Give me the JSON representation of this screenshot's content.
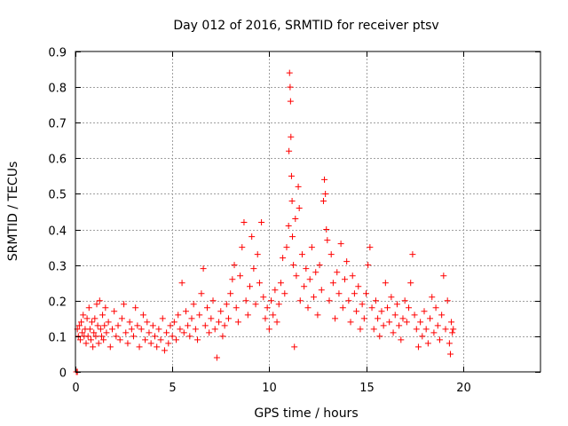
{
  "chart_data": {
    "type": "scatter",
    "title": "Day 012 of 2016, SRMTID for receiver ptsv",
    "xlabel": "GPS time / hours",
    "ylabel": "SRMTID / TECUs",
    "xlim": [
      0,
      24
    ],
    "ylim": [
      0,
      0.9
    ],
    "xticks": [
      0,
      5,
      10,
      15,
      20
    ],
    "yticks": [
      0,
      0.1,
      0.2,
      0.3,
      0.4,
      0.5,
      0.6,
      0.7,
      0.8,
      0.9
    ],
    "xtick_labels": [
      "0",
      "5",
      "10",
      "15",
      "20"
    ],
    "ytick_labels": [
      "0",
      "0.1",
      "0.2",
      "0.3",
      "0.4",
      "0.5",
      "0.6",
      "0.7",
      "0.8",
      "0.9"
    ],
    "grid": true,
    "marker": "+",
    "color": "#ff0000",
    "series": [
      {
        "name": "SRMTID",
        "points": [
          [
            0.05,
            0.0
          ],
          [
            0.1,
            0.0
          ],
          [
            0.1,
            0.12
          ],
          [
            0.15,
            0.1
          ],
          [
            0.2,
            0.13
          ],
          [
            0.25,
            0.09
          ],
          [
            0.3,
            0.14
          ],
          [
            0.35,
            0.11
          ],
          [
            0.4,
            0.16
          ],
          [
            0.45,
            0.1
          ],
          [
            0.5,
            0.12
          ],
          [
            0.55,
            0.08
          ],
          [
            0.6,
            0.15
          ],
          [
            0.65,
            0.1
          ],
          [
            0.7,
            0.18
          ],
          [
            0.75,
            0.12
          ],
          [
            0.8,
            0.09
          ],
          [
            0.85,
            0.14
          ],
          [
            0.9,
            0.07
          ],
          [
            0.95,
            0.11
          ],
          [
            1.0,
            0.15
          ],
          [
            1.05,
            0.1
          ],
          [
            1.1,
            0.19
          ],
          [
            1.15,
            0.13
          ],
          [
            1.2,
            0.08
          ],
          [
            1.25,
            0.2
          ],
          [
            1.3,
            0.12
          ],
          [
            1.35,
            0.1
          ],
          [
            1.4,
            0.16
          ],
          [
            1.45,
            0.09
          ],
          [
            1.5,
            0.13
          ],
          [
            1.55,
            0.18
          ],
          [
            1.6,
            0.11
          ],
          [
            1.7,
            0.14
          ],
          [
            1.8,
            0.07
          ],
          [
            1.9,
            0.12
          ],
          [
            2.0,
            0.17
          ],
          [
            2.1,
            0.1
          ],
          [
            2.2,
            0.13
          ],
          [
            2.3,
            0.09
          ],
          [
            2.4,
            0.15
          ],
          [
            2.5,
            0.19
          ],
          [
            2.6,
            0.11
          ],
          [
            2.7,
            0.08
          ],
          [
            2.8,
            0.14
          ],
          [
            2.9,
            0.12
          ],
          [
            3.0,
            0.1
          ],
          [
            3.1,
            0.18
          ],
          [
            3.2,
            0.13
          ],
          [
            3.3,
            0.07
          ],
          [
            3.4,
            0.12
          ],
          [
            3.5,
            0.16
          ],
          [
            3.6,
            0.09
          ],
          [
            3.7,
            0.14
          ],
          [
            3.8,
            0.11
          ],
          [
            3.9,
            0.08
          ],
          [
            4.0,
            0.13
          ],
          [
            4.1,
            0.1
          ],
          [
            4.2,
            0.07
          ],
          [
            4.3,
            0.12
          ],
          [
            4.4,
            0.09
          ],
          [
            4.5,
            0.15
          ],
          [
            4.6,
            0.06
          ],
          [
            4.7,
            0.11
          ],
          [
            4.8,
            0.08
          ],
          [
            4.9,
            0.13
          ],
          [
            5.0,
            0.1
          ],
          [
            5.1,
            0.14
          ],
          [
            5.2,
            0.09
          ],
          [
            5.3,
            0.16
          ],
          [
            5.4,
            0.12
          ],
          [
            5.5,
            0.25
          ],
          [
            5.6,
            0.11
          ],
          [
            5.7,
            0.17
          ],
          [
            5.8,
            0.13
          ],
          [
            5.9,
            0.1
          ],
          [
            6.0,
            0.15
          ],
          [
            6.1,
            0.19
          ],
          [
            6.2,
            0.12
          ],
          [
            6.3,
            0.09
          ],
          [
            6.4,
            0.16
          ],
          [
            6.5,
            0.22
          ],
          [
            6.6,
            0.29
          ],
          [
            6.7,
            0.13
          ],
          [
            6.8,
            0.18
          ],
          [
            6.9,
            0.11
          ],
          [
            7.0,
            0.15
          ],
          [
            7.1,
            0.2
          ],
          [
            7.2,
            0.12
          ],
          [
            7.3,
            0.04
          ],
          [
            7.4,
            0.14
          ],
          [
            7.5,
            0.17
          ],
          [
            7.6,
            0.1
          ],
          [
            7.7,
            0.13
          ],
          [
            7.8,
            0.19
          ],
          [
            7.9,
            0.15
          ],
          [
            8.0,
            0.22
          ],
          [
            8.1,
            0.26
          ],
          [
            8.2,
            0.3
          ],
          [
            8.3,
            0.18
          ],
          [
            8.4,
            0.14
          ],
          [
            8.5,
            0.27
          ],
          [
            8.6,
            0.35
          ],
          [
            8.7,
            0.42
          ],
          [
            8.8,
            0.2
          ],
          [
            8.9,
            0.16
          ],
          [
            9.0,
            0.24
          ],
          [
            9.1,
            0.38
          ],
          [
            9.2,
            0.29
          ],
          [
            9.3,
            0.19
          ],
          [
            9.4,
            0.33
          ],
          [
            9.5,
            0.25
          ],
          [
            9.6,
            0.42
          ],
          [
            9.7,
            0.21
          ],
          [
            9.8,
            0.15
          ],
          [
            9.9,
            0.18
          ],
          [
            10.0,
            0.12
          ],
          [
            10.1,
            0.2
          ],
          [
            10.2,
            0.16
          ],
          [
            10.3,
            0.23
          ],
          [
            10.4,
            0.14
          ],
          [
            10.5,
            0.19
          ],
          [
            10.6,
            0.25
          ],
          [
            10.7,
            0.32
          ],
          [
            10.8,
            0.22
          ],
          [
            10.9,
            0.35
          ],
          [
            11.0,
            0.41
          ],
          [
            11.02,
            0.62
          ],
          [
            11.05,
            0.84
          ],
          [
            11.08,
            0.8
          ],
          [
            11.1,
            0.76
          ],
          [
            11.12,
            0.66
          ],
          [
            11.15,
            0.55
          ],
          [
            11.18,
            0.48
          ],
          [
            11.2,
            0.38
          ],
          [
            11.25,
            0.3
          ],
          [
            11.3,
            0.07
          ],
          [
            11.35,
            0.43
          ],
          [
            11.4,
            0.27
          ],
          [
            11.5,
            0.52
          ],
          [
            11.55,
            0.46
          ],
          [
            11.6,
            0.2
          ],
          [
            11.7,
            0.33
          ],
          [
            11.8,
            0.24
          ],
          [
            11.9,
            0.29
          ],
          [
            12.0,
            0.18
          ],
          [
            12.1,
            0.26
          ],
          [
            12.2,
            0.35
          ],
          [
            12.3,
            0.21
          ],
          [
            12.4,
            0.28
          ],
          [
            12.5,
            0.16
          ],
          [
            12.6,
            0.3
          ],
          [
            12.7,
            0.23
          ],
          [
            12.8,
            0.48
          ],
          [
            12.85,
            0.54
          ],
          [
            12.9,
            0.5
          ],
          [
            12.95,
            0.4
          ],
          [
            13.0,
            0.37
          ],
          [
            13.1,
            0.2
          ],
          [
            13.2,
            0.33
          ],
          [
            13.3,
            0.25
          ],
          [
            13.4,
            0.15
          ],
          [
            13.5,
            0.28
          ],
          [
            13.6,
            0.22
          ],
          [
            13.7,
            0.36
          ],
          [
            13.8,
            0.18
          ],
          [
            13.9,
            0.26
          ],
          [
            14.0,
            0.31
          ],
          [
            14.1,
            0.2
          ],
          [
            14.2,
            0.14
          ],
          [
            14.3,
            0.27
          ],
          [
            14.4,
            0.22
          ],
          [
            14.5,
            0.17
          ],
          [
            14.6,
            0.24
          ],
          [
            14.7,
            0.12
          ],
          [
            14.8,
            0.19
          ],
          [
            14.9,
            0.15
          ],
          [
            15.0,
            0.22
          ],
          [
            15.1,
            0.3
          ],
          [
            15.2,
            0.35
          ],
          [
            15.3,
            0.18
          ],
          [
            15.4,
            0.12
          ],
          [
            15.5,
            0.2
          ],
          [
            15.6,
            0.15
          ],
          [
            15.7,
            0.1
          ],
          [
            15.8,
            0.17
          ],
          [
            15.9,
            0.13
          ],
          [
            16.0,
            0.25
          ],
          [
            16.1,
            0.18
          ],
          [
            16.2,
            0.14
          ],
          [
            16.3,
            0.21
          ],
          [
            16.4,
            0.11
          ],
          [
            16.5,
            0.16
          ],
          [
            16.6,
            0.19
          ],
          [
            16.7,
            0.13
          ],
          [
            16.8,
            0.09
          ],
          [
            16.9,
            0.15
          ],
          [
            17.0,
            0.2
          ],
          [
            17.1,
            0.14
          ],
          [
            17.2,
            0.18
          ],
          [
            17.3,
            0.25
          ],
          [
            17.4,
            0.33
          ],
          [
            17.5,
            0.16
          ],
          [
            17.6,
            0.12
          ],
          [
            17.7,
            0.07
          ],
          [
            17.8,
            0.14
          ],
          [
            17.9,
            0.1
          ],
          [
            18.0,
            0.17
          ],
          [
            18.1,
            0.12
          ],
          [
            18.2,
            0.08
          ],
          [
            18.3,
            0.15
          ],
          [
            18.4,
            0.21
          ],
          [
            18.5,
            0.11
          ],
          [
            18.6,
            0.18
          ],
          [
            18.7,
            0.13
          ],
          [
            18.8,
            0.09
          ],
          [
            18.9,
            0.16
          ],
          [
            19.0,
            0.27
          ],
          [
            19.1,
            0.12
          ],
          [
            19.2,
            0.2
          ],
          [
            19.3,
            0.08
          ],
          [
            19.35,
            0.05
          ],
          [
            19.4,
            0.14
          ],
          [
            19.45,
            0.11
          ],
          [
            19.5,
            0.12
          ]
        ]
      }
    ]
  }
}
